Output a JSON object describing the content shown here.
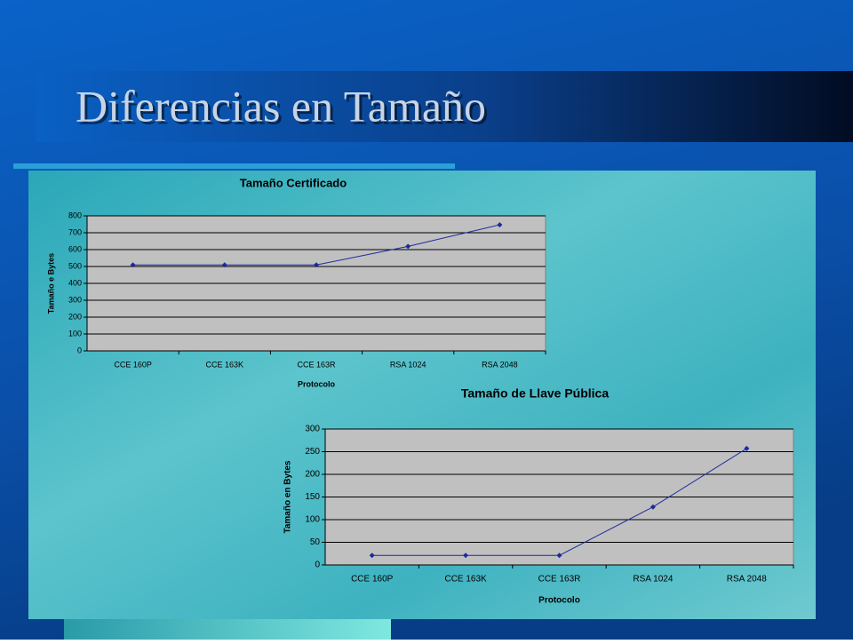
{
  "slide": {
    "title": "Diferencias en Tamaño"
  },
  "chart_data": [
    {
      "type": "line",
      "title": "Tamaño Certificado",
      "x_label": "Protocolo",
      "y_label": "Tamaño e Bytes",
      "categories": [
        "CCE 160P",
        "CCE 163K",
        "CCE 163R",
        "RSA 1024",
        "RSA 2048"
      ],
      "series": [
        {
          "name": "Tamaño Certificado",
          "color": "#1c2a9c",
          "values": [
            509,
            509,
            509,
            619,
            747
          ]
        }
      ],
      "ylim": [
        0,
        800
      ],
      "yticks": [
        0,
        100,
        200,
        300,
        400,
        500,
        600,
        700,
        800
      ],
      "grid": true
    },
    {
      "type": "line",
      "title": "Tamaño de Llave Pública",
      "x_label": "Protocolo",
      "y_label": "Tamaño en Bytes",
      "categories": [
        "CCE 160P",
        "CCE 163K",
        "CCE 163R",
        "RSA 1024",
        "RSA 2048"
      ],
      "series": [
        {
          "name": "Tamaño de Llave Pública",
          "color": "#1c2a9c",
          "values": [
            21,
            21,
            21,
            128,
            257
          ]
        }
      ],
      "ylim": [
        0,
        300
      ],
      "yticks": [
        0,
        50,
        100,
        150,
        200,
        250,
        300
      ],
      "grid": true
    }
  ]
}
